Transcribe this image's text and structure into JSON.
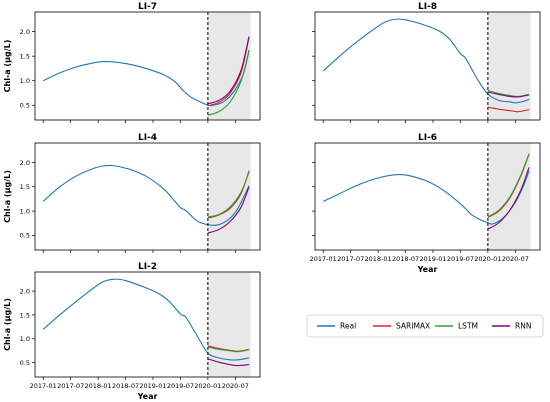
{
  "chart_data": {
    "type": "line",
    "x_ticks": [
      "2017-01",
      "2017-07",
      "2018-01",
      "2018-07",
      "2019-01",
      "2019-07",
      "2020-01",
      "2020-07"
    ],
    "xlabel": "Year",
    "ylabel": "Chl-a (μg/L)",
    "y_ticks": [
      0.5,
      1.0,
      1.5,
      2.0
    ],
    "legend": {
      "placement": "bottom-right",
      "entries": [
        {
          "name": "Real",
          "color": "#1f77b4"
        },
        {
          "name": "SARIMAX",
          "color": "#d62728"
        },
        {
          "name": "LSTM",
          "color": "#2ca02c"
        },
        {
          "name": "RNN",
          "color": "#800080"
        }
      ]
    },
    "panels": [
      {
        "title": "LI-7",
        "forecast_start": "2020-01",
        "real": [
          [
            2017.0,
            1.0
          ],
          [
            2017.3,
            1.16
          ],
          [
            2017.6,
            1.28
          ],
          [
            2017.9,
            1.36
          ],
          [
            2018.1,
            1.39
          ],
          [
            2018.3,
            1.38
          ],
          [
            2018.6,
            1.33
          ],
          [
            2018.9,
            1.24
          ],
          [
            2019.2,
            1.12
          ],
          [
            2019.4,
            0.98
          ],
          [
            2019.55,
            0.8
          ],
          [
            2019.7,
            0.66
          ],
          [
            2019.9,
            0.55
          ],
          [
            2020.0,
            0.5
          ],
          [
            2020.1,
            0.5
          ],
          [
            2020.3,
            0.58
          ],
          [
            2020.5,
            0.82
          ],
          [
            2020.65,
            1.15
          ],
          [
            2020.75,
            1.62
          ]
        ],
        "forecasts": {
          "SARIMAX": [
            [
              2020.0,
              0.49
            ],
            [
              2020.2,
              0.56
            ],
            [
              2020.4,
              0.74
            ],
            [
              2020.6,
              1.15
            ],
            [
              2020.75,
              1.88
            ]
          ],
          "LSTM": [
            [
              2020.0,
              0.3
            ],
            [
              2020.2,
              0.37
            ],
            [
              2020.4,
              0.56
            ],
            [
              2020.6,
              0.98
            ],
            [
              2020.75,
              1.62
            ]
          ],
          "RNN": [
            [
              2020.0,
              0.53
            ],
            [
              2020.2,
              0.6
            ],
            [
              2020.4,
              0.78
            ],
            [
              2020.6,
              1.2
            ],
            [
              2020.75,
              1.9
            ]
          ]
        }
      },
      {
        "title": "LI-8",
        "forecast_start": "2020-01",
        "real": [
          [
            2017.0,
            1.2
          ],
          [
            2017.4,
            1.6
          ],
          [
            2017.8,
            1.95
          ],
          [
            2018.1,
            2.18
          ],
          [
            2018.3,
            2.25
          ],
          [
            2018.5,
            2.24
          ],
          [
            2018.8,
            2.15
          ],
          [
            2019.1,
            2.02
          ],
          [
            2019.3,
            1.85
          ],
          [
            2019.5,
            1.55
          ],
          [
            2019.6,
            1.45
          ],
          [
            2019.8,
            1.05
          ],
          [
            2020.0,
            0.73
          ],
          [
            2020.2,
            0.6
          ],
          [
            2020.4,
            0.57
          ],
          [
            2020.5,
            0.55
          ],
          [
            2020.65,
            0.58
          ],
          [
            2020.75,
            0.62
          ]
        ],
        "forecasts": {
          "SARIMAX": [
            [
              2020.0,
              0.46
            ],
            [
              2020.2,
              0.42
            ],
            [
              2020.4,
              0.39
            ],
            [
              2020.55,
              0.37
            ],
            [
              2020.75,
              0.41
            ]
          ],
          "LSTM": [
            [
              2020.0,
              0.8
            ],
            [
              2020.2,
              0.74
            ],
            [
              2020.4,
              0.7
            ],
            [
              2020.55,
              0.68
            ],
            [
              2020.75,
              0.72
            ]
          ],
          "RNN": [
            [
              2020.0,
              0.77
            ],
            [
              2020.2,
              0.72
            ],
            [
              2020.4,
              0.68
            ],
            [
              2020.55,
              0.67
            ],
            [
              2020.75,
              0.71
            ]
          ]
        }
      },
      {
        "title": "LI-4",
        "forecast_start": "2020-01",
        "real": [
          [
            2017.0,
            1.2
          ],
          [
            2017.3,
            1.5
          ],
          [
            2017.6,
            1.72
          ],
          [
            2017.9,
            1.87
          ],
          [
            2018.1,
            1.93
          ],
          [
            2018.3,
            1.93
          ],
          [
            2018.6,
            1.85
          ],
          [
            2018.9,
            1.7
          ],
          [
            2019.2,
            1.45
          ],
          [
            2019.4,
            1.2
          ],
          [
            2019.5,
            1.07
          ],
          [
            2019.6,
            1.01
          ],
          [
            2019.8,
            0.8
          ],
          [
            2020.0,
            0.72
          ],
          [
            2020.2,
            0.72
          ],
          [
            2020.4,
            0.85
          ],
          [
            2020.55,
            1.06
          ],
          [
            2020.75,
            1.52
          ]
        ],
        "forecasts": {
          "SARIMAX": [
            [
              2020.0,
              0.86
            ],
            [
              2020.2,
              0.92
            ],
            [
              2020.4,
              1.05
            ],
            [
              2020.6,
              1.35
            ],
            [
              2020.75,
              1.83
            ]
          ],
          "LSTM": [
            [
              2020.0,
              0.88
            ],
            [
              2020.2,
              0.93
            ],
            [
              2020.4,
              1.08
            ],
            [
              2020.6,
              1.38
            ],
            [
              2020.75,
              1.8
            ]
          ],
          "RNN": [
            [
              2020.0,
              0.55
            ],
            [
              2020.2,
              0.62
            ],
            [
              2020.4,
              0.78
            ],
            [
              2020.6,
              1.07
            ],
            [
              2020.75,
              1.5
            ]
          ]
        }
      },
      {
        "title": "LI-6",
        "forecast_start": "2020-01",
        "real": [
          [
            2017.0,
            1.2
          ],
          [
            2017.3,
            1.36
          ],
          [
            2017.6,
            1.52
          ],
          [
            2017.9,
            1.65
          ],
          [
            2018.2,
            1.73
          ],
          [
            2018.4,
            1.75
          ],
          [
            2018.6,
            1.72
          ],
          [
            2018.9,
            1.61
          ],
          [
            2019.2,
            1.42
          ],
          [
            2019.5,
            1.15
          ],
          [
            2019.7,
            0.93
          ],
          [
            2019.85,
            0.83
          ],
          [
            2020.0,
            0.76
          ],
          [
            2020.1,
            0.74
          ],
          [
            2020.3,
            0.88
          ],
          [
            2020.5,
            1.18
          ],
          [
            2020.65,
            1.52
          ],
          [
            2020.75,
            1.83
          ]
        ],
        "forecasts": {
          "SARIMAX": [
            [
              2020.0,
              0.87
            ],
            [
              2020.2,
              1.0
            ],
            [
              2020.4,
              1.27
            ],
            [
              2020.6,
              1.72
            ],
            [
              2020.75,
              2.17
            ]
          ],
          "LSTM": [
            [
              2020.0,
              0.88
            ],
            [
              2020.2,
              1.02
            ],
            [
              2020.4,
              1.29
            ],
            [
              2020.6,
              1.74
            ],
            [
              2020.75,
              2.18
            ]
          ],
          "RNN": [
            [
              2020.0,
              0.63
            ],
            [
              2020.2,
              0.76
            ],
            [
              2020.4,
              1.02
            ],
            [
              2020.6,
              1.43
            ],
            [
              2020.75,
              1.9
            ]
          ]
        }
      },
      {
        "title": "LI-2",
        "forecast_start": "2020-01",
        "real": [
          [
            2017.0,
            1.2
          ],
          [
            2017.3,
            1.5
          ],
          [
            2017.6,
            1.78
          ],
          [
            2017.9,
            2.05
          ],
          [
            2018.1,
            2.2
          ],
          [
            2018.3,
            2.25
          ],
          [
            2018.5,
            2.22
          ],
          [
            2018.8,
            2.1
          ],
          [
            2019.1,
            1.95
          ],
          [
            2019.3,
            1.78
          ],
          [
            2019.5,
            1.52
          ],
          [
            2019.6,
            1.45
          ],
          [
            2019.8,
            1.07
          ],
          [
            2020.0,
            0.7
          ],
          [
            2020.2,
            0.6
          ],
          [
            2020.4,
            0.56
          ],
          [
            2020.55,
            0.56
          ],
          [
            2020.75,
            0.6
          ]
        ],
        "forecasts": {
          "SARIMAX": [
            [
              2020.0,
              0.85
            ],
            [
              2020.2,
              0.8
            ],
            [
              2020.4,
              0.76
            ],
            [
              2020.55,
              0.74
            ],
            [
              2020.75,
              0.78
            ]
          ],
          "LSTM": [
            [
              2020.0,
              0.83
            ],
            [
              2020.2,
              0.78
            ],
            [
              2020.4,
              0.75
            ],
            [
              2020.55,
              0.73
            ],
            [
              2020.75,
              0.77
            ]
          ],
          "RNN": [
            [
              2020.0,
              0.58
            ],
            [
              2020.2,
              0.51
            ],
            [
              2020.4,
              0.46
            ],
            [
              2020.55,
              0.44
            ],
            [
              2020.75,
              0.46
            ]
          ]
        }
      }
    ]
  }
}
